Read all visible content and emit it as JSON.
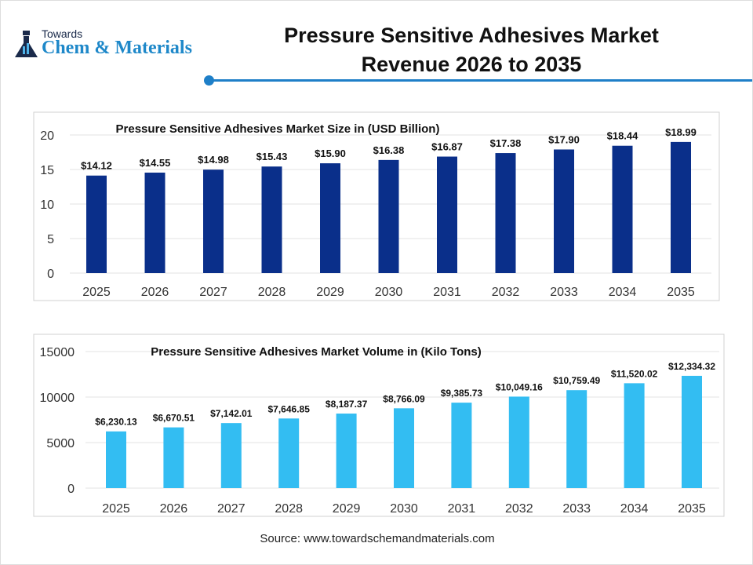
{
  "logo": {
    "line1": "Towards",
    "line2": "Chem & Materials"
  },
  "header": {
    "title_line1": "Pressure Sensitive Adhesives Market",
    "title_line2": "Revenue 2026 to 2035"
  },
  "source": "Source: www.towardschemandmaterials.com",
  "chart_data": [
    {
      "type": "bar",
      "title": "Pressure Sensitive Adhesives Market Size in (USD Billion)",
      "categories": [
        "2025",
        "2026",
        "2027",
        "2028",
        "2029",
        "2030",
        "2031",
        "2032",
        "2033",
        "2034",
        "2035"
      ],
      "values": [
        14.12,
        14.55,
        14.98,
        15.43,
        15.9,
        16.38,
        16.87,
        17.38,
        17.9,
        18.44,
        18.99
      ],
      "data_labels": [
        "$14.12",
        "$14.55",
        "$14.98",
        "$15.43",
        "$15.90",
        "$16.38",
        "$16.87",
        "$17.38",
        "$17.90",
        "$18.44",
        "$18.99"
      ],
      "yticks": [
        "0",
        "5",
        "10",
        "15",
        "20"
      ],
      "ylim": [
        0,
        20
      ],
      "grid": true,
      "color": "#0a2f8a"
    },
    {
      "type": "bar",
      "title": "Pressure Sensitive Adhesives Market Volume in (Kilo Tons)",
      "categories": [
        "2025",
        "2026",
        "2027",
        "2028",
        "2029",
        "2030",
        "2031",
        "2032",
        "2033",
        "2034",
        "2035"
      ],
      "values": [
        6230.13,
        6670.51,
        7142.01,
        7646.85,
        8187.37,
        8766.09,
        9385.73,
        10049.16,
        10759.49,
        11520.02,
        12334.32
      ],
      "data_labels": [
        "$6,230.13",
        "$6,670.51",
        "$7,142.01",
        "$7,646.85",
        "$8,187.37",
        "$8,766.09",
        "$9,385.73",
        "$10,049.16",
        "$10,759.49",
        "$11,520.02",
        "$12,334.32"
      ],
      "yticks": [
        "0",
        "5000",
        "10000",
        "15000"
      ],
      "ylim": [
        0,
        15000
      ],
      "grid": true,
      "color": "#33bdf2"
    }
  ]
}
